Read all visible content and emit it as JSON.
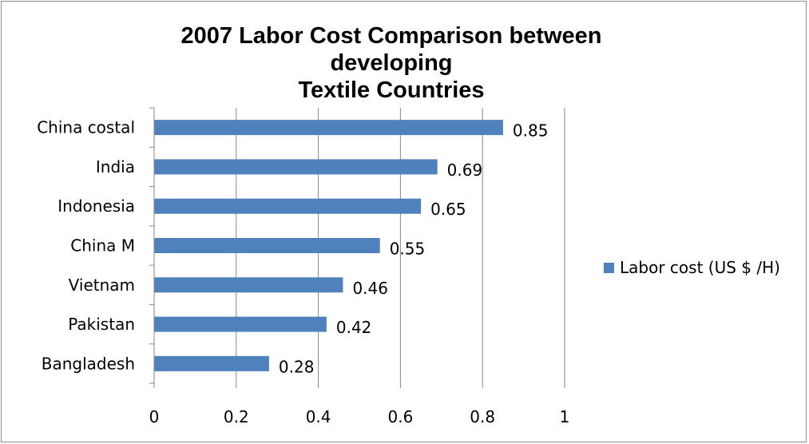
{
  "chart_data": {
    "type": "bar",
    "orientation": "horizontal",
    "title": "2007 Labor Cost Comparison between developing\nTextile Countries",
    "categories": [
      "China costal",
      "India",
      "Indonesia",
      "China M",
      "Vietnam",
      "Pakistan",
      "Bangladesh"
    ],
    "series": [
      {
        "name": "Labor cost (US $ /H)",
        "values": [
          0.85,
          0.69,
          0.65,
          0.55,
          0.46,
          0.42,
          0.28
        ],
        "color": "#4f81bd"
      }
    ],
    "xlim": [
      0,
      1
    ],
    "xticks": [
      "0",
      "0.2",
      "0.4",
      "0.6",
      "0.8",
      "1"
    ],
    "value_labels": [
      "0.85",
      "0.69",
      "0.65",
      "0.55",
      "0.46",
      "0.42",
      "0.28"
    ],
    "grid": "vertical",
    "legend": "right"
  }
}
